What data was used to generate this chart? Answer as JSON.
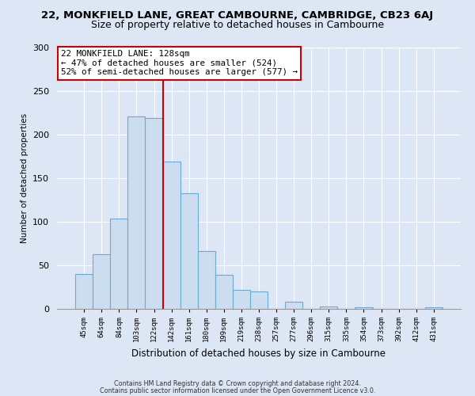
{
  "title": "22, MONKFIELD LANE, GREAT CAMBOURNE, CAMBRIDGE, CB23 6AJ",
  "subtitle": "Size of property relative to detached houses in Cambourne",
  "xlabel": "Distribution of detached houses by size in Cambourne",
  "ylabel": "Number of detached properties",
  "all_bar_labels": [
    "45sqm",
    "64sqm",
    "84sqm",
    "103sqm",
    "122sqm",
    "142sqm",
    "161sqm",
    "180sqm",
    "199sqm",
    "219sqm",
    "238sqm",
    "257sqm",
    "277sqm",
    "296sqm",
    "315sqm",
    "335sqm",
    "354sqm",
    "373sqm",
    "392sqm",
    "412sqm",
    "431sqm"
  ],
  "bar_color": "#ccddf0",
  "bar_edge_color": "#6aaad4",
  "vline_color": "#cc0000",
  "annotation_text": "22 MONKFIELD LANE: 128sqm\n← 47% of detached houses are smaller (524)\n52% of semi-detached houses are larger (577) →",
  "annotation_box_color": "#ffffff",
  "annotation_box_edge": "#cc0000",
  "ylim": [
    0,
    300
  ],
  "yticks": [
    0,
    50,
    100,
    150,
    200,
    250,
    300
  ],
  "footer1": "Contains HM Land Registry data © Crown copyright and database right 2024.",
  "footer2": "Contains public sector information licensed under the Open Government Licence v3.0.",
  "background_color": "#dce6f5",
  "plot_bg_color": "#dce6f5",
  "title_fontsize": 9.5,
  "subtitle_fontsize": 9,
  "bar_counts": [
    40,
    63,
    104,
    221,
    219,
    169,
    133,
    66,
    39,
    22,
    20,
    0,
    8,
    0,
    3,
    0,
    2,
    0,
    0,
    0,
    2
  ],
  "vline_bar_index": 4
}
